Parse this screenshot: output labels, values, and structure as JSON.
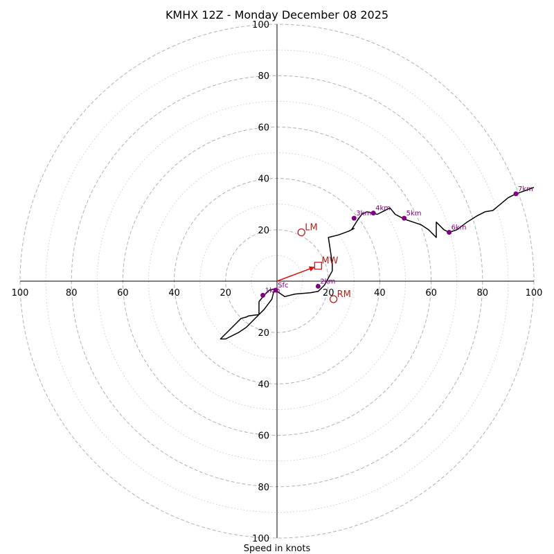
{
  "chart_data": {
    "type": "hodograph",
    "title": "KMHX 12Z - Monday December 08 2025",
    "xlabel": "Speed in knots",
    "units": "knots",
    "range": [
      -100,
      100
    ],
    "ring_major": [
      20,
      40,
      60,
      80,
      100
    ],
    "ring_minor": [
      10,
      30,
      50,
      70,
      90
    ],
    "x_ticks": [
      {
        "value": -100,
        "label": "100"
      },
      {
        "value": -80,
        "label": "80"
      },
      {
        "value": -60,
        "label": "60"
      },
      {
        "value": -40,
        "label": "40"
      },
      {
        "value": -20,
        "label": "20"
      },
      {
        "value": 20,
        "label": "20"
      },
      {
        "value": 40,
        "label": "40"
      },
      {
        "value": 60,
        "label": "60"
      },
      {
        "value": 80,
        "label": "80"
      },
      {
        "value": 100,
        "label": "100"
      }
    ],
    "y_ticks": [
      {
        "value": 100,
        "label": "100"
      },
      {
        "value": 80,
        "label": "80"
      },
      {
        "value": 60,
        "label": "60"
      },
      {
        "value": 40,
        "label": "40"
      },
      {
        "value": 20,
        "label": "20"
      },
      {
        "value": -20,
        "label": "20"
      },
      {
        "value": -40,
        "label": "40"
      },
      {
        "value": -60,
        "label": "60"
      },
      {
        "value": -80,
        "label": "80"
      },
      {
        "value": -100,
        "label": "100"
      }
    ],
    "trace": [
      [
        -1,
        -3
      ],
      [
        -0.5,
        -3.5
      ],
      [
        0,
        -4
      ],
      [
        3,
        -6
      ],
      [
        7,
        -5
      ],
      [
        13,
        -4.5
      ],
      [
        16,
        -4
      ],
      [
        18.5,
        -1.5
      ],
      [
        21.5,
        4
      ],
      [
        21.5,
        7
      ],
      [
        20,
        17
      ],
      [
        24,
        18
      ],
      [
        28,
        19.5
      ],
      [
        30,
        20.5
      ],
      [
        29,
        20
      ],
      [
        31.5,
        24
      ],
      [
        33,
        26
      ],
      [
        35,
        27
      ],
      [
        37,
        26.5
      ],
      [
        39,
        26
      ],
      [
        41,
        27
      ],
      [
        43,
        28
      ],
      [
        44,
        28.5
      ],
      [
        46,
        26
      ],
      [
        48,
        25
      ],
      [
        50,
        24
      ],
      [
        53,
        23
      ],
      [
        56,
        22
      ],
      [
        59,
        20
      ],
      [
        62,
        17
      ],
      [
        62,
        23
      ],
      [
        65,
        20
      ],
      [
        67,
        19
      ],
      [
        70,
        20
      ],
      [
        74,
        23
      ],
      [
        78,
        25.5
      ],
      [
        81,
        27
      ],
      [
        84,
        27.5
      ],
      [
        87,
        30
      ],
      [
        90,
        32.5
      ],
      [
        93,
        34
      ],
      [
        96,
        35
      ],
      [
        100,
        36.5
      ],
      "break",
      [
        -1,
        -3
      ],
      [
        -3,
        -3.5
      ],
      [
        -5,
        -5.5
      ],
      [
        -7,
        -8
      ],
      [
        -7,
        -13
      ],
      [
        -11,
        -13.5
      ],
      [
        -12,
        -14
      ],
      [
        -14,
        -14.5
      ],
      [
        -22,
        -22.5
      ],
      [
        -20,
        -22.5
      ],
      [
        -15,
        -20
      ],
      [
        -12,
        -18
      ],
      [
        -9,
        -15
      ],
      [
        -5,
        -11
      ],
      [
        -2,
        -7
      ],
      [
        -1,
        -3
      ]
    ],
    "height_markers": [
      {
        "label": "Sfc",
        "u": -0.5,
        "v": -3.5
      },
      {
        "label": "1km",
        "u": -5.5,
        "v": -5.5
      },
      {
        "label": "2km",
        "u": 16,
        "v": -2
      },
      {
        "label": "3km",
        "u": 30,
        "v": 24.5
      },
      {
        "label": "4km",
        "u": 37.5,
        "v": 26.5
      },
      {
        "label": "5km",
        "u": 49.5,
        "v": 24.5
      },
      {
        "label": "6km",
        "u": 67,
        "v": 19
      },
      {
        "label": "7km",
        "u": 93,
        "v": 34
      }
    ],
    "motion_markers": [
      {
        "label": "LM",
        "u": 9.5,
        "v": 19,
        "shape": "circle"
      },
      {
        "label": "MW",
        "u": 16,
        "v": 6,
        "shape": "square"
      },
      {
        "label": "RM",
        "u": 22,
        "v": -7,
        "shape": "circle"
      }
    ],
    "mean_wind_vector": {
      "u": 16,
      "v": 6
    },
    "colors": {
      "trace": "#000000",
      "height_marker": "#800080",
      "motion_marker": "#b22222",
      "mean_wind_arrow": "#e01010",
      "ring_major": "#b8b8b8",
      "ring_minor": "#cccccc",
      "axis": "#000000"
    }
  }
}
